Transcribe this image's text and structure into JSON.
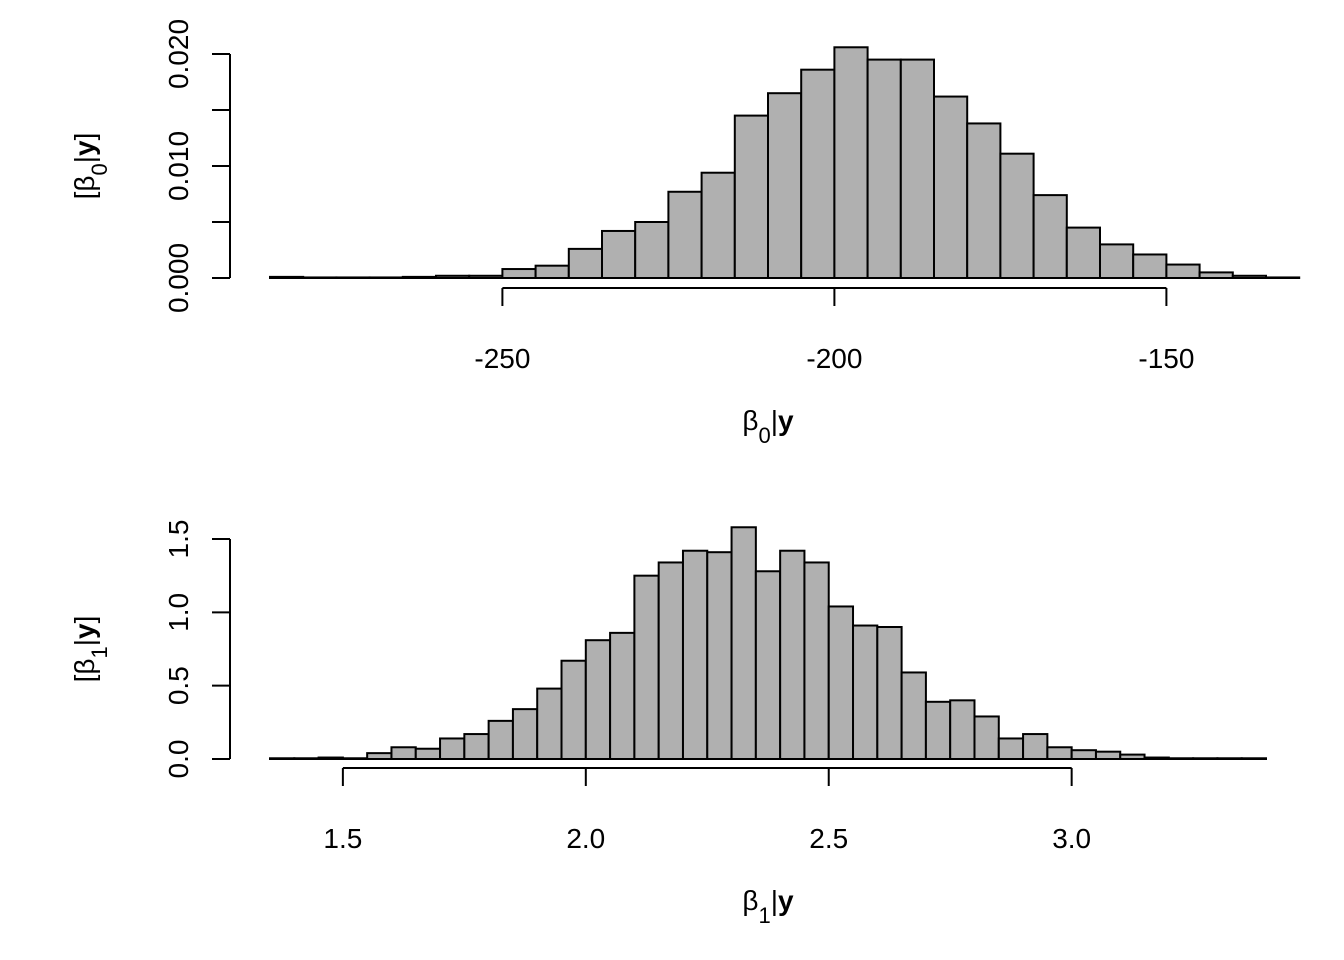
{
  "chart_data": [
    {
      "type": "bar",
      "subtype": "histogram",
      "xlabel": {
        "symbol": "β",
        "sub": "0",
        "bar": "|",
        "bold": "y"
      },
      "ylabel": {
        "open": "[",
        "symbol": "β",
        "sub": "0",
        "bar": "|",
        "bold": "y",
        "close": "]"
      },
      "xlim": [
        -285,
        -135
      ],
      "ylim": [
        0,
        0.02
      ],
      "xticks": [
        -250,
        -200,
        -150
      ],
      "xtick_labels": [
        "-250",
        "-200",
        "-150"
      ],
      "yticks": [
        0,
        0.005,
        0.01,
        0.015,
        0.02
      ],
      "ytick_labels": [
        "0.000",
        "",
        "0.010",
        "",
        "0.020"
      ],
      "bin_width": 5,
      "bin_start": -285,
      "values": [
        0.0001,
        5e-05,
        5e-05,
        5e-05,
        0.0001,
        0.0002,
        0.0002,
        0.0008,
        0.0011,
        0.0026,
        0.0042,
        0.005,
        0.0077,
        0.0094,
        0.0145,
        0.0165,
        0.0186,
        0.0206,
        0.0195,
        0.0195,
        0.0162,
        0.0138,
        0.0111,
        0.0074,
        0.0045,
        0.003,
        0.0021,
        0.0012,
        0.0005,
        0.0002,
        5e-05
      ],
      "grid": false,
      "bar_color": "#b0b0b0"
    },
    {
      "type": "bar",
      "subtype": "histogram",
      "xlabel": {
        "symbol": "β",
        "sub": "1",
        "bar": "|",
        "bold": "y"
      },
      "ylabel": {
        "open": "[",
        "symbol": "β",
        "sub": "1",
        "bar": "|",
        "bold": "y",
        "close": "]"
      },
      "xlim": [
        1.35,
        3.4
      ],
      "ylim": [
        0,
        1.5
      ],
      "xticks": [
        1.5,
        2.0,
        2.5,
        3.0
      ],
      "xtick_labels": [
        "1.5",
        "2.0",
        "2.5",
        "3.0"
      ],
      "yticks": [
        0,
        0.5,
        1.0,
        1.5
      ],
      "ytick_labels": [
        "0.0",
        "0.5",
        "1.0",
        "1.5"
      ],
      "bin_width": 0.05,
      "bin_start": 1.35,
      "values": [
        0.005,
        0.005,
        0.01,
        0.005,
        0.04,
        0.08,
        0.07,
        0.14,
        0.17,
        0.26,
        0.34,
        0.48,
        0.67,
        0.81,
        0.86,
        1.25,
        1.34,
        1.42,
        1.41,
        1.58,
        1.28,
        1.42,
        1.34,
        1.04,
        0.91,
        0.9,
        0.59,
        0.39,
        0.4,
        0.29,
        0.14,
        0.17,
        0.08,
        0.06,
        0.05,
        0.03,
        0.01,
        0.005,
        0.005,
        0.005,
        0.005
      ],
      "grid": false,
      "bar_color": "#b0b0b0"
    }
  ]
}
